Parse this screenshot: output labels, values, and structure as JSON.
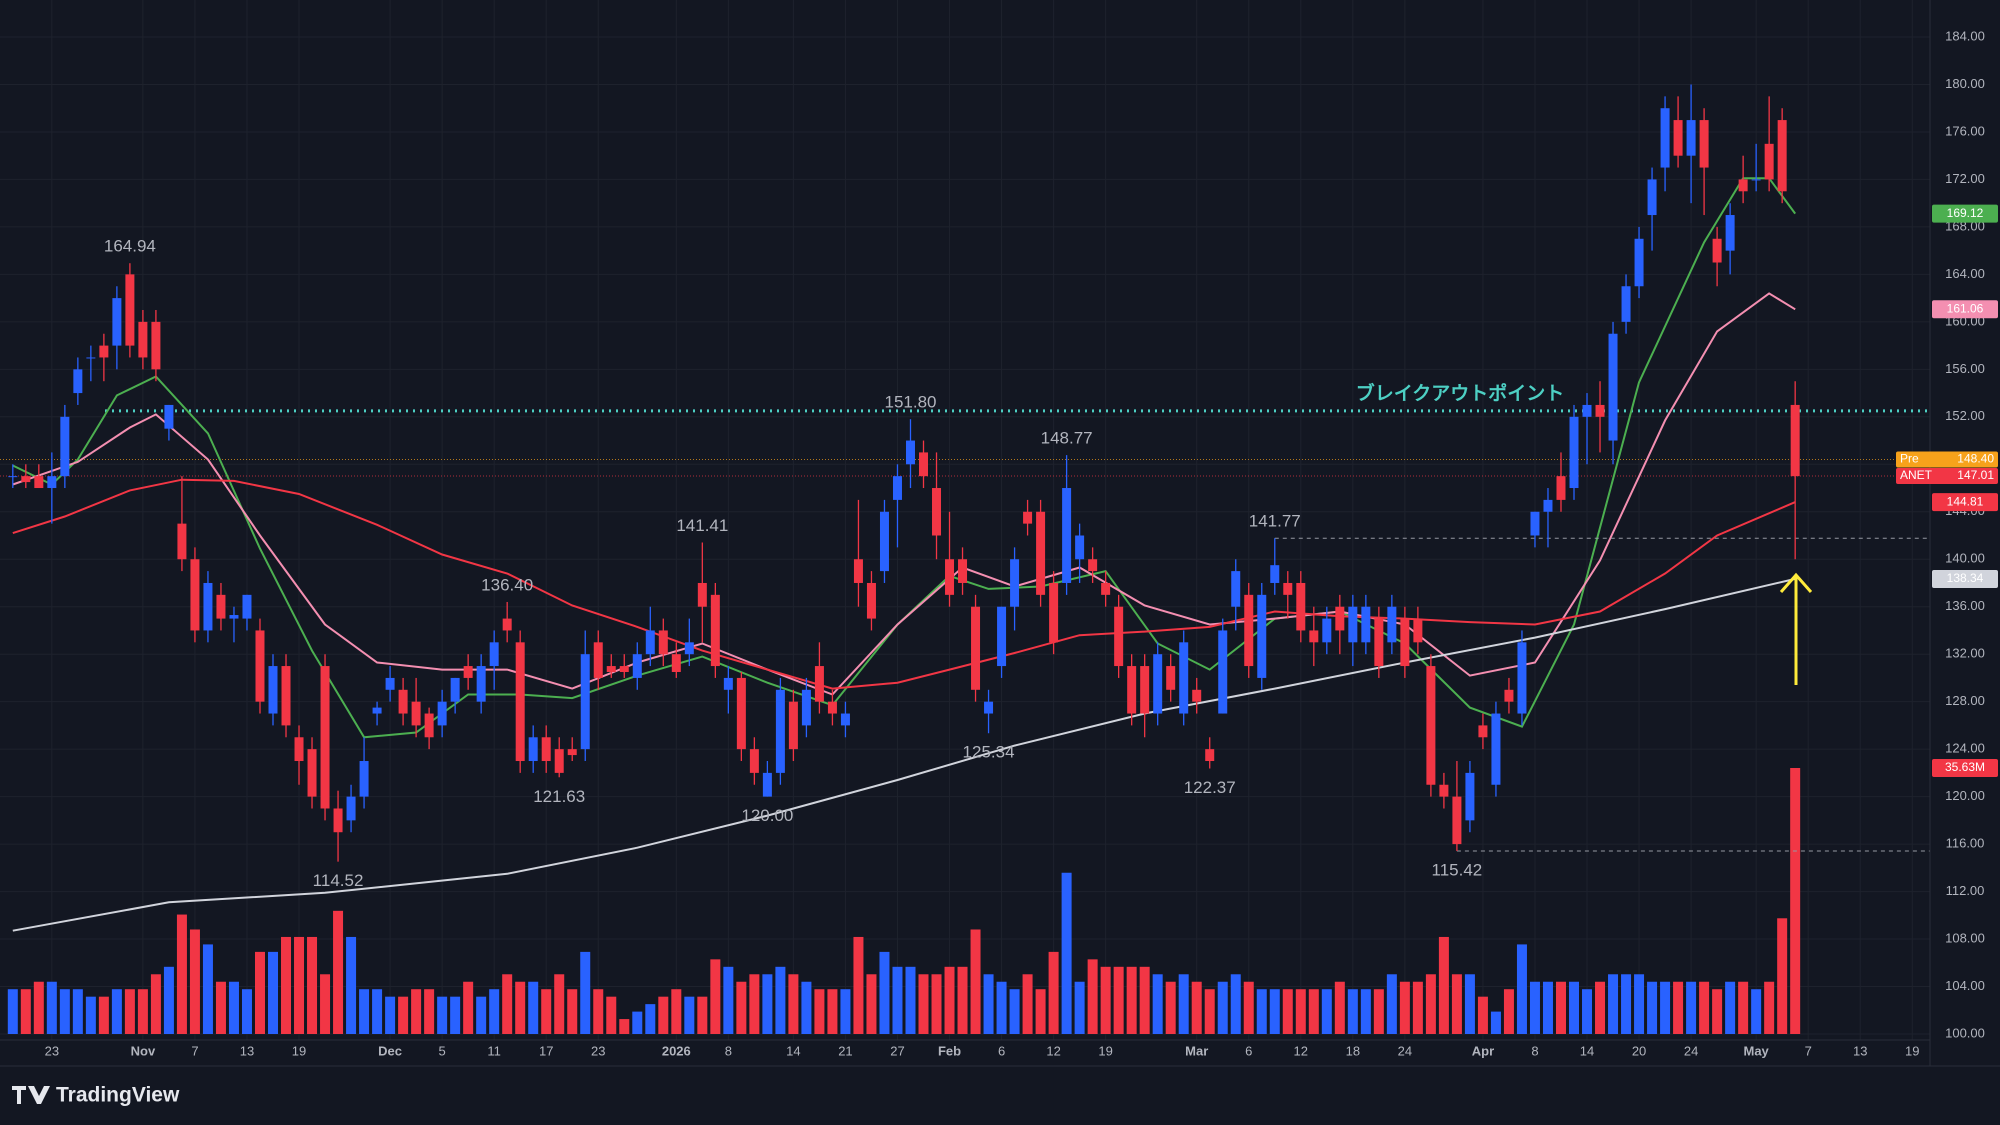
{
  "footer": {
    "brand": "TradingView"
  },
  "chart_data": {
    "type": "candlestick",
    "up_color": "#2962ff",
    "down_color": "#f23645",
    "grid": true,
    "ylim": [
      100,
      184
    ],
    "yticks": [
      {
        "value": 100,
        "label": "100.00"
      },
      {
        "value": 104,
        "label": "104.00"
      },
      {
        "value": 108,
        "label": "108.00"
      },
      {
        "value": 112,
        "label": "112.00"
      },
      {
        "value": 116,
        "label": "116.00"
      },
      {
        "value": 120,
        "label": "120.00"
      },
      {
        "value": 124,
        "label": "124.00"
      },
      {
        "value": 128,
        "label": "128.00"
      },
      {
        "value": 132,
        "label": "132.00"
      },
      {
        "value": 136,
        "label": "136.00"
      },
      {
        "value": 140,
        "label": "140.00"
      },
      {
        "value": 144,
        "label": "144.00"
      },
      {
        "value": 148,
        "label": "148.00"
      },
      {
        "value": 152,
        "label": "152.00"
      },
      {
        "value": 156,
        "label": "156.00"
      },
      {
        "value": 160,
        "label": "160.00"
      },
      {
        "value": 164,
        "label": "164.00"
      },
      {
        "value": 168,
        "label": "168.00"
      },
      {
        "value": 172,
        "label": "172.00"
      },
      {
        "value": 176,
        "label": "176.00"
      },
      {
        "value": 180,
        "label": "180.00"
      },
      {
        "value": 184,
        "label": "184.00"
      }
    ],
    "xticks": [
      {
        "value": 3,
        "label": "23"
      },
      {
        "value": 10,
        "label": "Nov"
      },
      {
        "value": 14,
        "label": "7"
      },
      {
        "value": 18,
        "label": "13"
      },
      {
        "value": 22,
        "label": "19"
      },
      {
        "value": 29,
        "label": "Dec"
      },
      {
        "value": 33,
        "label": "5"
      },
      {
        "value": 37,
        "label": "11"
      },
      {
        "value": 41,
        "label": "17"
      },
      {
        "value": 45,
        "label": "23"
      },
      {
        "value": 51,
        "label": "2026"
      },
      {
        "value": 55,
        "label": "8"
      },
      {
        "value": 60,
        "label": "14"
      },
      {
        "value": 64,
        "label": "21"
      },
      {
        "value": 68,
        "label": "27"
      },
      {
        "value": 72,
        "label": "Feb"
      },
      {
        "value": 76,
        "label": "6"
      },
      {
        "value": 80,
        "label": "12"
      },
      {
        "value": 84,
        "label": "19"
      },
      {
        "value": 91,
        "label": "Mar"
      },
      {
        "value": 95,
        "label": "6"
      },
      {
        "value": 99,
        "label": "12"
      },
      {
        "value": 103,
        "label": "18"
      },
      {
        "value": 107,
        "label": "24"
      },
      {
        "value": 113,
        "label": "Apr"
      },
      {
        "value": 117,
        "label": "8"
      },
      {
        "value": 121,
        "label": "14"
      },
      {
        "value": 125,
        "label": "20"
      },
      {
        "value": 129,
        "label": "24"
      },
      {
        "value": 134,
        "label": "May"
      },
      {
        "value": 138,
        "label": "7"
      },
      {
        "value": 142,
        "label": "13"
      },
      {
        "value": 146,
        "label": "19"
      }
    ],
    "ohlc": [
      [
        147,
        148,
        146,
        147
      ],
      [
        147,
        148,
        146,
        146.5
      ],
      [
        147,
        148,
        146,
        146
      ],
      [
        146,
        149,
        143,
        147
      ],
      [
        147,
        153,
        146,
        152
      ],
      [
        154,
        157,
        153,
        156
      ],
      [
        157,
        158,
        155,
        157
      ],
      [
        158,
        159,
        155,
        157
      ],
      [
        158,
        163,
        156,
        162
      ],
      [
        164,
        164.94,
        157,
        158
      ],
      [
        160,
        161,
        156,
        157
      ],
      [
        160,
        161,
        155,
        156
      ],
      [
        151,
        153,
        150,
        153
      ],
      [
        143,
        147,
        139,
        140
      ],
      [
        140,
        141,
        133,
        134
      ],
      [
        134,
        139,
        133,
        138
      ],
      [
        137,
        138,
        134,
        135
      ],
      [
        135,
        136,
        133,
        135.3
      ],
      [
        135,
        137,
        134,
        137
      ],
      [
        134,
        135,
        127,
        128
      ],
      [
        127,
        132,
        126,
        131
      ],
      [
        131,
        132,
        125,
        126
      ],
      [
        125,
        126,
        121,
        123
      ],
      [
        124,
        125,
        119,
        120
      ],
      [
        131,
        132,
        118,
        119
      ],
      [
        119,
        120.5,
        114.52,
        117
      ],
      [
        118,
        121,
        117,
        120
      ],
      [
        120,
        125,
        119,
        123
      ],
      [
        127,
        128,
        126,
        127.5
      ],
      [
        129,
        131,
        128,
        130
      ],
      [
        129,
        130,
        126,
        127
      ],
      [
        128,
        130,
        125,
        126
      ],
      [
        127,
        127.5,
        124,
        125
      ],
      [
        126,
        129,
        125,
        128
      ],
      [
        128,
        130,
        127,
        130
      ],
      [
        131,
        132,
        129,
        130
      ],
      [
        128,
        132,
        127,
        131
      ],
      [
        131,
        134,
        129,
        133
      ],
      [
        135,
        136.4,
        133,
        134
      ],
      [
        133,
        134,
        122,
        123
      ],
      [
        123,
        126,
        122,
        125
      ],
      [
        125,
        126,
        122,
        123
      ],
      [
        124,
        125,
        121.63,
        122
      ],
      [
        124,
        125,
        123,
        123.5
      ],
      [
        124,
        134,
        123,
        132
      ],
      [
        133,
        134,
        129,
        130
      ],
      [
        131,
        132,
        130,
        130.5
      ],
      [
        131,
        132,
        130,
        130.5
      ],
      [
        130,
        133,
        129,
        132
      ],
      [
        132,
        136,
        131,
        134
      ],
      [
        134,
        135,
        131,
        132
      ],
      [
        132,
        133,
        130,
        130.5
      ],
      [
        132,
        135,
        131,
        133
      ],
      [
        138,
        141.41,
        133,
        136
      ],
      [
        137,
        138,
        130,
        131
      ],
      [
        129,
        131,
        127,
        130
      ],
      [
        130,
        130.5,
        123,
        124
      ],
      [
        124,
        125,
        121,
        122
      ],
      [
        120,
        123,
        120,
        122
      ],
      [
        122,
        130,
        121,
        129
      ],
      [
        128,
        129,
        123,
        124
      ],
      [
        126,
        130,
        125,
        129
      ],
      [
        131,
        133,
        127,
        128
      ],
      [
        128,
        129,
        126,
        127
      ],
      [
        126,
        128,
        125,
        127
      ],
      [
        140,
        145,
        136,
        138
      ],
      [
        138,
        139,
        134,
        135
      ],
      [
        139,
        145,
        138,
        144
      ],
      [
        145,
        148,
        141,
        147
      ],
      [
        148,
        151.8,
        146,
        150
      ],
      [
        149,
        150,
        146,
        147
      ],
      [
        146,
        149,
        140,
        142
      ],
      [
        140,
        144,
        136,
        137
      ],
      [
        140,
        141,
        137,
        138
      ],
      [
        136,
        137,
        128,
        129
      ],
      [
        127,
        129,
        125.34,
        128
      ],
      [
        131,
        136,
        130,
        136
      ],
      [
        136,
        141,
        134,
        140
      ],
      [
        144,
        145,
        142,
        143
      ],
      [
        144,
        145,
        136,
        137
      ],
      [
        138,
        139,
        132,
        133
      ],
      [
        138,
        148.77,
        137,
        146
      ],
      [
        140,
        143,
        138,
        142
      ],
      [
        140,
        141,
        138,
        139
      ],
      [
        138,
        139,
        136,
        137
      ],
      [
        136,
        137,
        130,
        131
      ],
      [
        131,
        132,
        126,
        127
      ],
      [
        131,
        132,
        125,
        127
      ],
      [
        127,
        133,
        126,
        132
      ],
      [
        131,
        132,
        128,
        129
      ],
      [
        127,
        134,
        126,
        133
      ],
      [
        129,
        130,
        127,
        128
      ],
      [
        124,
        125,
        122.37,
        123
      ],
      [
        127,
        135,
        127,
        134
      ],
      [
        136,
        140,
        134,
        139
      ],
      [
        137,
        138,
        130,
        131
      ],
      [
        130,
        138,
        129,
        137
      ],
      [
        138,
        141.77,
        137,
        139.5
      ],
      [
        138,
        139,
        135,
        137
      ],
      [
        138,
        139,
        133,
        134
      ],
      [
        134,
        136,
        131,
        133
      ],
      [
        133,
        136,
        132,
        135
      ],
      [
        136,
        137,
        132,
        134
      ],
      [
        133,
        137,
        131,
        136
      ],
      [
        133,
        137,
        132,
        136
      ],
      [
        135,
        136,
        130,
        131
      ],
      [
        133,
        137,
        132,
        136
      ],
      [
        135,
        136,
        130,
        131
      ],
      [
        135,
        136,
        132,
        133
      ],
      [
        131,
        132,
        120,
        121
      ],
      [
        121,
        122,
        119,
        120
      ],
      [
        120,
        123,
        115.42,
        116
      ],
      [
        118,
        123,
        117,
        122
      ],
      [
        126,
        127,
        124,
        125
      ],
      [
        121,
        128,
        120,
        127
      ],
      [
        129,
        130,
        127,
        128
      ],
      [
        127,
        134,
        126,
        133
      ],
      [
        142,
        144,
        141,
        144
      ],
      [
        144,
        146,
        141,
        145
      ],
      [
        147,
        149,
        144,
        145
      ],
      [
        146,
        153,
        145,
        152
      ],
      [
        152,
        154,
        148,
        153
      ],
      [
        153,
        155,
        149,
        152
      ],
      [
        150,
        160,
        148,
        159
      ],
      [
        160,
        164,
        159,
        163
      ],
      [
        163,
        168,
        162,
        167
      ],
      [
        169,
        173,
        166,
        172
      ],
      [
        173,
        179,
        171,
        178
      ],
      [
        177,
        179,
        173,
        174
      ],
      [
        174,
        180,
        170,
        177
      ],
      [
        177,
        178,
        169,
        173
      ],
      [
        167,
        168,
        163,
        165
      ],
      [
        166,
        170,
        164,
        169
      ],
      [
        172,
        174,
        170,
        171
      ],
      [
        172,
        175,
        171,
        172
      ],
      [
        175,
        179,
        171,
        172
      ],
      [
        177,
        178,
        170,
        171
      ],
      [
        153,
        155,
        140,
        147
      ]
    ],
    "volume": [
      6,
      6,
      7,
      7,
      6,
      6,
      5,
      5,
      6,
      6,
      6,
      8,
      9,
      16,
      14,
      12,
      7,
      7,
      6,
      11,
      11,
      13,
      13,
      13,
      8,
      16.5,
      13,
      6,
      6,
      5,
      5,
      6,
      6,
      5,
      5,
      7,
      5,
      6,
      8,
      7,
      7,
      6,
      8,
      6,
      11,
      6,
      5,
      2,
      3,
      4,
      5,
      6,
      5,
      5,
      10,
      9,
      7,
      8,
      8,
      9,
      8,
      7,
      6,
      6,
      6,
      13,
      8,
      11,
      9,
      9,
      8,
      8,
      9,
      9,
      14,
      8,
      7,
      6,
      8,
      6,
      11,
      21.6,
      7,
      10,
      9,
      9,
      9,
      9,
      8,
      7,
      8,
      7,
      6,
      7,
      8,
      7,
      6,
      6,
      6,
      6,
      6,
      6,
      7,
      6,
      6,
      6,
      8,
      7,
      7,
      8,
      13,
      8,
      8,
      5,
      3,
      6,
      12,
      7,
      7,
      7,
      7,
      6,
      7,
      8,
      8,
      8,
      7,
      7,
      7,
      7,
      7,
      6,
      7,
      7,
      6,
      7,
      15.5,
      35.63
    ],
    "volume_last_label": "35.63M",
    "moving_averages": [
      {
        "color": "#4caf50",
        "x": [
          0,
          3,
          5,
          8,
          11,
          15,
          19,
          23,
          27,
          31,
          35,
          39,
          43,
          48,
          53,
          58,
          63,
          68,
          72,
          75,
          79,
          84,
          88,
          92,
          97,
          102,
          107,
          112,
          116,
          120,
          125,
          130,
          133,
          135,
          137
        ],
        "values": [
          147.9,
          146.3,
          148.4,
          153.8,
          155.4,
          150.6,
          140.9,
          132.3,
          125,
          125.4,
          128.6,
          128.6,
          128.3,
          130.2,
          131.8,
          129.6,
          127.7,
          134.5,
          138.6,
          137.5,
          137.7,
          139,
          132.9,
          130.7,
          135,
          135.6,
          132.9,
          127.5,
          125.9,
          134.5,
          154.9,
          166.7,
          172.1,
          172.1,
          169.12
        ]
      },
      {
        "color": "#f48fb1",
        "x": [
          0,
          5,
          9,
          11,
          15,
          19,
          24,
          28,
          33,
          38,
          43,
          48,
          53,
          58,
          63,
          68,
          73,
          77,
          82,
          87,
          92,
          97,
          102,
          107,
          112,
          117,
          122,
          127,
          131,
          135,
          137
        ],
        "values": [
          146.3,
          148.2,
          151.1,
          152.2,
          148.4,
          142,
          134.5,
          131.3,
          130.7,
          130.7,
          129.1,
          131.3,
          132.9,
          130.7,
          128.6,
          134.5,
          139.3,
          137.7,
          139.3,
          136.1,
          134.5,
          135,
          135.6,
          134.5,
          130.2,
          131.3,
          139.9,
          151.7,
          159.2,
          162.4,
          161.06
        ]
      },
      {
        "color": "#f23645",
        "x": [
          0,
          4,
          9,
          13,
          17,
          22,
          28,
          33,
          38,
          43,
          48,
          53,
          58,
          63,
          68,
          72,
          77,
          82,
          87,
          92,
          97,
          102,
          107,
          112,
          117,
          122,
          127,
          131,
          137
        ],
        "values": [
          142.2,
          143.6,
          145.8,
          146.7,
          146.6,
          145.5,
          142.9,
          140.4,
          138.8,
          136.1,
          134.3,
          132.3,
          130.7,
          129.1,
          129.6,
          130.7,
          132.1,
          133.6,
          133.9,
          134.3,
          135.6,
          135.2,
          135,
          134.7,
          134.5,
          135.6,
          138.8,
          142,
          144.81
        ]
      },
      {
        "color": "#d1d4dc",
        "x": [
          0,
          12,
          24,
          38,
          48,
          58,
          68,
          77,
          87,
          97,
          107,
          117,
          127,
          137
        ],
        "values": [
          108.7,
          111.1,
          111.9,
          113.5,
          115.7,
          118.4,
          121.4,
          124.3,
          127,
          129.1,
          131.3,
          133.4,
          135.8,
          138.34
        ]
      }
    ],
    "annotations": [
      {
        "value": 164.94,
        "label": "164.94"
      },
      {
        "value": 136.4,
        "label": "136.40"
      },
      {
        "value": 141.41,
        "label": "141.41"
      },
      {
        "value": 151.8,
        "label": "151.80"
      },
      {
        "value": 148.77,
        "label": "148.77"
      },
      {
        "value": 141.77,
        "label": "141.77",
        "extend": true
      },
      {
        "value": 114.52,
        "label": "114.52"
      },
      {
        "value": 121.63,
        "label": "121.63"
      },
      {
        "value": 120,
        "label": "120.00"
      },
      {
        "value": 125.34,
        "label": "125.34"
      },
      {
        "value": 122.37,
        "label": "122.37"
      },
      {
        "value": 115.42,
        "label": "115.42",
        "extend": true
      }
    ],
    "levels": [
      {
        "value": 152.5,
        "color": "#4dd0c4",
        "label": "ブレイクアウトポイント"
      }
    ],
    "price_tags": [
      {
        "name": "Pre",
        "value": 148.4,
        "value_label": "148.40",
        "color": "#f7a21b"
      },
      {
        "name": "ANET",
        "value": 147.01,
        "color": "#f23645"
      }
    ]
  }
}
